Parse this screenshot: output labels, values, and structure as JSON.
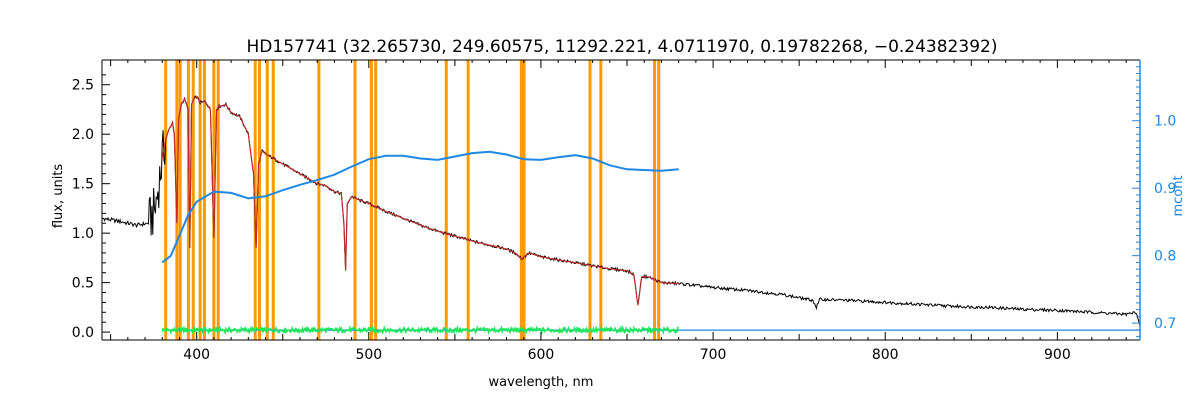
{
  "chart_data": {
    "type": "line",
    "title": "HD157741    (32.265730, 249.60575, 11292.221, 4.0711970, 0.19782268, −0.24382392)",
    "xlabel": "wavelength, nm",
    "ylabel": "flux, units",
    "ylabel_right": "mcont",
    "xlim": [
      345,
      948
    ],
    "ylim": [
      -0.08,
      2.75
    ],
    "ylim_right": [
      0.675,
      1.09
    ],
    "x_ticks": [
      400,
      500,
      600,
      700,
      800,
      900
    ],
    "y_ticks": [
      0.0,
      0.5,
      1.0,
      1.5,
      2.0,
      2.5
    ],
    "y_ticks_right": [
      0.7,
      0.8,
      0.9,
      1.0
    ],
    "colors": {
      "observed": "#000000",
      "model": "#d32f2f",
      "residual": "#1de85a",
      "mcont": "#1e88e5",
      "mask": "#ff9a00",
      "axis": "#000000",
      "axis_right": "#1e88e5"
    },
    "mask_lines": [
      382,
      388.5,
      390.4,
      395.2,
      398,
      402,
      404.5,
      410,
      412.5,
      434,
      436.5,
      441,
      444.5,
      471,
      492,
      501.5,
      504,
      545,
      557.7,
      588.6,
      589.4,
      590.2,
      628.5,
      634.8,
      666,
      668.4
    ],
    "series": [
      {
        "name": "observed flux",
        "x": [
          345,
          355,
          365,
          372,
          376,
          378,
          380,
          382,
          384,
          386,
          387,
          388.5,
          389.5,
          391,
          393,
          395,
          396,
          397,
          398.5,
          400,
          402,
          405,
          408,
          410,
          411.5,
          413,
          417,
          420,
          425,
          430,
          433,
          434.5,
          436,
          438,
          440,
          445,
          450,
          455,
          460,
          465,
          470,
          475,
          480,
          484,
          485.5,
          486.5,
          487.5,
          490,
          495,
          500,
          510,
          520,
          530,
          540,
          550,
          560,
          570,
          580,
          585,
          589,
          593,
          600,
          620,
          640,
          650,
          654,
          656.3,
          658.5,
          662,
          670,
          680,
          700,
          720,
          740,
          758,
          760,
          762,
          780,
          800,
          820,
          840,
          860,
          880,
          900,
          920,
          940,
          946,
          948
        ],
        "y": [
          1.15,
          1.12,
          1.08,
          1.1,
          1.25,
          1.5,
          1.75,
          1.95,
          2.05,
          2.12,
          2.0,
          1.1,
          2.15,
          2.3,
          2.36,
          2.25,
          0.85,
          2.3,
          2.36,
          2.38,
          2.32,
          2.33,
          2.25,
          0.95,
          2.25,
          2.28,
          2.3,
          2.22,
          2.18,
          2.0,
          1.6,
          0.85,
          1.7,
          1.83,
          1.8,
          1.75,
          1.7,
          1.65,
          1.6,
          1.55,
          1.5,
          1.48,
          1.42,
          1.4,
          1.1,
          0.62,
          1.3,
          1.37,
          1.33,
          1.3,
          1.22,
          1.15,
          1.08,
          1.02,
          0.97,
          0.92,
          0.88,
          0.84,
          0.8,
          0.74,
          0.8,
          0.76,
          0.7,
          0.64,
          0.62,
          0.58,
          0.27,
          0.56,
          0.56,
          0.5,
          0.49,
          0.45,
          0.42,
          0.38,
          0.32,
          0.25,
          0.33,
          0.32,
          0.3,
          0.28,
          0.26,
          0.25,
          0.23,
          0.22,
          0.2,
          0.18,
          0.2,
          0.05
        ]
      },
      {
        "name": "model",
        "x": [
          380,
          382,
          384,
          386,
          387,
          388.5,
          389.5,
          391,
          393,
          395,
          396,
          397,
          398.5,
          400,
          402,
          405,
          408,
          410,
          411.5,
          413,
          417,
          420,
          425,
          430,
          433,
          434.5,
          436,
          438,
          440,
          445,
          450,
          455,
          460,
          465,
          470,
          475,
          480,
          484,
          485.5,
          486.5,
          487.5,
          490,
          495,
          500,
          510,
          520,
          530,
          540,
          550,
          560,
          570,
          580,
          585,
          589,
          593,
          600,
          620,
          640,
          650,
          654,
          656.3,
          658.5,
          662,
          670,
          680
        ],
        "y": [
          1.75,
          1.95,
          2.05,
          2.12,
          2.0,
          1.1,
          2.15,
          2.3,
          2.36,
          2.25,
          0.85,
          2.3,
          2.36,
          2.38,
          2.32,
          2.33,
          2.25,
          0.95,
          2.25,
          2.28,
          2.3,
          2.22,
          2.18,
          2.0,
          1.6,
          0.85,
          1.7,
          1.83,
          1.8,
          1.75,
          1.7,
          1.65,
          1.6,
          1.55,
          1.5,
          1.48,
          1.42,
          1.4,
          1.1,
          0.62,
          1.3,
          1.37,
          1.33,
          1.3,
          1.22,
          1.15,
          1.08,
          1.02,
          0.97,
          0.92,
          0.88,
          0.84,
          0.8,
          0.74,
          0.8,
          0.76,
          0.7,
          0.64,
          0.62,
          0.58,
          0.27,
          0.56,
          0.56,
          0.5,
          0.49
        ]
      },
      {
        "name": "residual",
        "x": [
          380,
          680
        ],
        "y": [
          0.02,
          0.02
        ]
      },
      {
        "name": "mcont",
        "axis": "right",
        "x": [
          380,
          385,
          390,
          395,
          400,
          410,
          420,
          430,
          440,
          450,
          460,
          470,
          480,
          490,
          500,
          510,
          520,
          530,
          540,
          550,
          560,
          570,
          580,
          590,
          600,
          610,
          620,
          630,
          640,
          650,
          660,
          670,
          680
        ],
        "y": [
          0.79,
          0.8,
          0.83,
          0.86,
          0.88,
          0.895,
          0.893,
          0.885,
          0.888,
          0.897,
          0.905,
          0.912,
          0.92,
          0.932,
          0.943,
          0.948,
          0.948,
          0.944,
          0.942,
          0.947,
          0.952,
          0.954,
          0.95,
          0.943,
          0.942,
          0.946,
          0.949,
          0.944,
          0.934,
          0.928,
          0.927,
          0.926,
          0.928
        ]
      }
    ]
  }
}
